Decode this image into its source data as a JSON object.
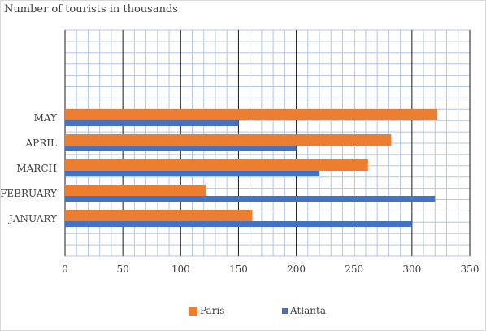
{
  "chart_data": {
    "type": "bar",
    "orientation": "horizontal",
    "title": "Number of tourists in thousands",
    "xlabel": "",
    "ylabel": "",
    "categories": [
      "JANUARY",
      "FEBRUARY",
      "MARCH",
      "APRIL",
      "MAY"
    ],
    "series": [
      {
        "name": "Paris",
        "color": "#ed7d31",
        "values": [
          162,
          122,
          262,
          282,
          322
        ]
      },
      {
        "name": "Atlanta",
        "color": "#4472c4",
        "values": [
          300,
          320,
          220,
          200,
          150
        ]
      }
    ],
    "xlim": [
      0,
      350
    ],
    "xticks": [
      0,
      50,
      100,
      150,
      200,
      250,
      300,
      350
    ],
    "grid": true,
    "legend_position": "bottom"
  }
}
